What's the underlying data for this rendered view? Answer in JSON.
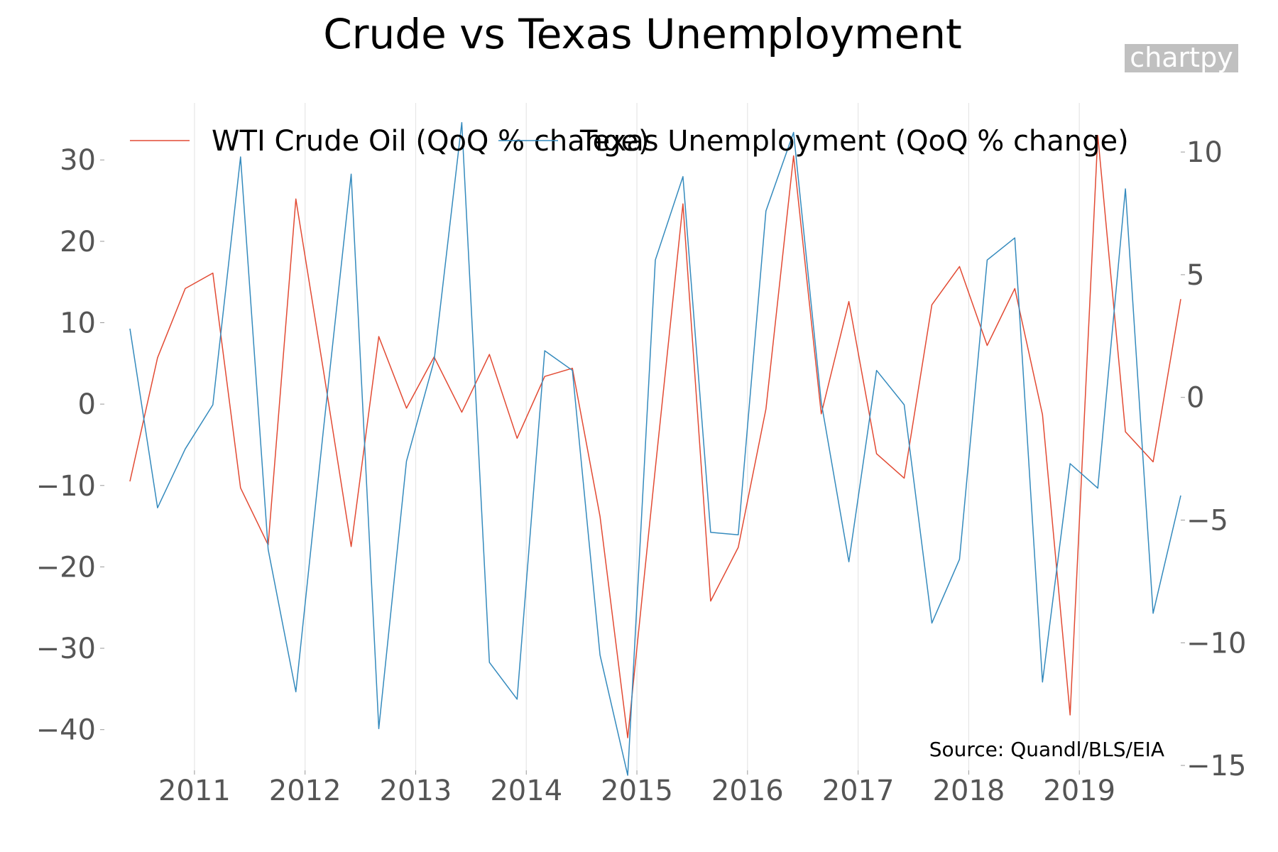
{
  "chart_data": {
    "type": "line",
    "title": "Crude vs Texas Unemployment",
    "watermark": "chartpy",
    "source": "Source: Quandl/BLS/EIA",
    "legend_placement": "top",
    "grid": "vertical",
    "x_tick_labels": [
      "2011",
      "2012",
      "2013",
      "2014",
      "2015",
      "2016",
      "2017",
      "2018",
      "2019"
    ],
    "x": [
      "2010-06",
      "2010-09",
      "2010-12",
      "2011-03",
      "2011-06",
      "2011-09",
      "2011-12",
      "2012-03",
      "2012-06",
      "2012-09",
      "2012-12",
      "2013-03",
      "2013-06",
      "2013-09",
      "2013-12",
      "2014-03",
      "2014-06",
      "2014-09",
      "2014-12",
      "2015-03",
      "2015-06",
      "2015-09",
      "2015-12",
      "2016-03",
      "2016-06",
      "2016-09",
      "2016-12",
      "2017-03",
      "2017-06",
      "2017-09",
      "2017-12",
      "2018-03",
      "2018-06",
      "2018-09",
      "2018-12",
      "2019-03",
      "2019-06",
      "2019-09",
      "2019-12"
    ],
    "left_axis": {
      "ylim": [
        -45,
        37
      ],
      "ticks": [
        -40,
        -30,
        -20,
        -10,
        0,
        10,
        20,
        30
      ]
    },
    "right_axis": {
      "ylim": [
        -15.2,
        12
      ],
      "ticks": [
        -15,
        -10,
        -5,
        0,
        5,
        10
      ]
    },
    "series": [
      {
        "name": "WTI Crude Oil (QoQ % change)",
        "axis": "left",
        "color": "#e24a33",
        "values": [
          -9.5,
          5.7,
          14.2,
          16.1,
          -10.3,
          -17.3,
          25.2,
          4.1,
          -17.5,
          8.3,
          -0.5,
          5.8,
          -1.0,
          6.1,
          -4.2,
          3.4,
          4.4,
          -13.8,
          -41.0,
          -7.9,
          24.6,
          -24.2,
          -17.6,
          -0.6,
          30.5,
          -1.2,
          12.6,
          -6.1,
          -9.1,
          12.2,
          16.9,
          7.2,
          14.2,
          -1.3,
          -38.2,
          33.0,
          -3.4,
          -7.1,
          12.9
        ]
      },
      {
        "name": "Texas Unemployment (QoQ % change)",
        "axis": "right",
        "color": "#348abd",
        "values": [
          2.8,
          -4.5,
          -2.1,
          -0.3,
          9.8,
          -6.2,
          -12.0,
          -1.3,
          9.1,
          -13.5,
          -2.6,
          1.5,
          11.2,
          -10.8,
          -12.3,
          1.9,
          1.1,
          -10.5,
          -15.4,
          5.6,
          9.0,
          -5.5,
          -5.6,
          7.6,
          10.8,
          -0.2,
          -6.7,
          1.1,
          -0.3,
          -9.2,
          -6.6,
          5.6,
          6.5,
          -11.6,
          -2.7,
          -3.7,
          8.5,
          -8.8,
          -4.0
        ]
      }
    ]
  }
}
